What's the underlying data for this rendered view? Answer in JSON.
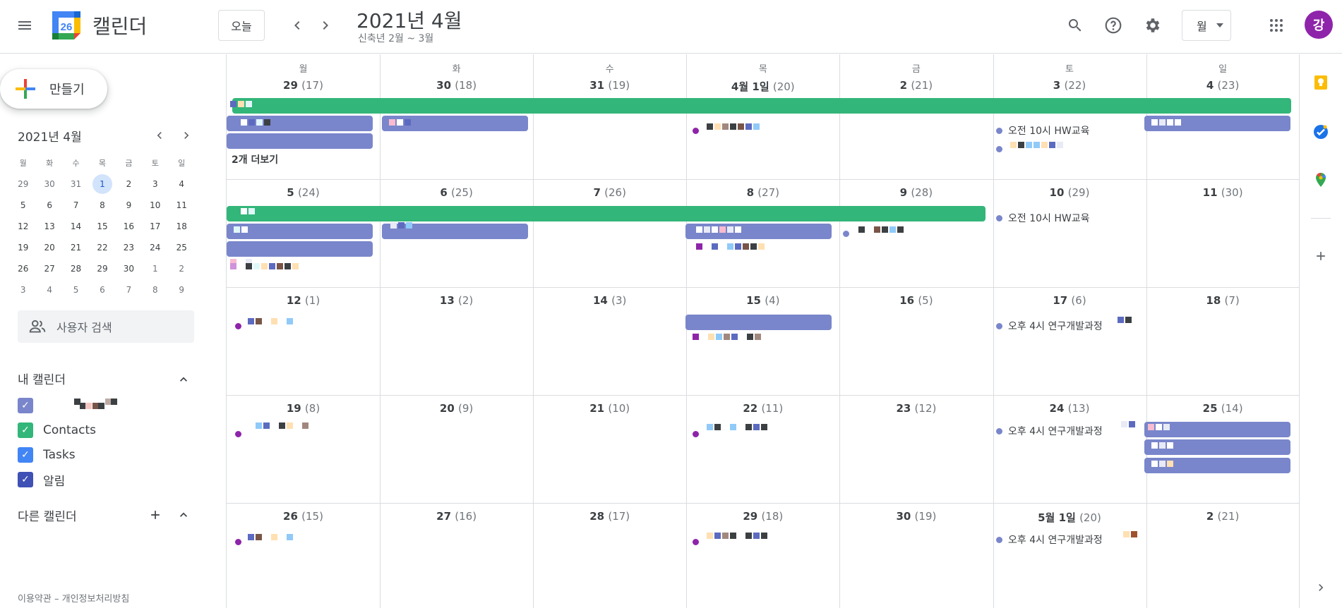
{
  "header": {
    "app_title": "캘린더",
    "logo_day": "26",
    "today_label": "오늘",
    "month_title": "2021년 4월",
    "lunar_subtitle": "신축년 2월 ~ 3월",
    "view_label": "월",
    "avatar_letter": "강"
  },
  "sidebar": {
    "create_label": "만들기",
    "mini_title": "2021년 4월",
    "weekdays": [
      "월",
      "화",
      "수",
      "목",
      "금",
      "토",
      "일"
    ],
    "weeks": [
      [
        "29",
        "30",
        "31",
        "1",
        "2",
        "3",
        "4"
      ],
      [
        "5",
        "6",
        "7",
        "8",
        "9",
        "10",
        "11"
      ],
      [
        "12",
        "13",
        "14",
        "15",
        "16",
        "17",
        "18"
      ],
      [
        "19",
        "20",
        "21",
        "22",
        "23",
        "24",
        "25"
      ],
      [
        "26",
        "27",
        "28",
        "29",
        "30",
        "1",
        "2"
      ],
      [
        "3",
        "4",
        "5",
        "6",
        "7",
        "8",
        "9"
      ]
    ],
    "search_people_placeholder": "사용자 검색",
    "my_calendars_title": "내 캘린더",
    "my_calendars": [
      {
        "name": "",
        "color": "#7986cb"
      },
      {
        "name": "Contacts",
        "color": "#33b679"
      },
      {
        "name": "Tasks",
        "color": "#4285f4"
      },
      {
        "name": "알림",
        "color": "#3f51b5"
      }
    ],
    "other_calendars_title": "다른 캘린더",
    "footer": "이용약관 – 개인정보처리방침"
  },
  "grid": {
    "weekday_headers": [
      "월",
      "화",
      "수",
      "목",
      "금",
      "토",
      "일"
    ],
    "weeks": [
      [
        {
          "d": "29",
          "l": "(17)"
        },
        {
          "d": "30",
          "l": "(18)"
        },
        {
          "d": "31",
          "l": "(19)"
        },
        {
          "d": "4월 1일",
          "l": "(20)"
        },
        {
          "d": "2",
          "l": "(21)"
        },
        {
          "d": "3",
          "l": "(22)"
        },
        {
          "d": "4",
          "l": "(23)"
        }
      ],
      [
        {
          "d": "5",
          "l": "(24)"
        },
        {
          "d": "6",
          "l": "(25)"
        },
        {
          "d": "7",
          "l": "(26)"
        },
        {
          "d": "8",
          "l": "(27)"
        },
        {
          "d": "9",
          "l": "(28)"
        },
        {
          "d": "10",
          "l": "(29)"
        },
        {
          "d": "11",
          "l": "(30)"
        }
      ],
      [
        {
          "d": "12",
          "l": "(1)"
        },
        {
          "d": "13",
          "l": "(2)"
        },
        {
          "d": "14",
          "l": "(3)"
        },
        {
          "d": "15",
          "l": "(4)"
        },
        {
          "d": "16",
          "l": "(5)"
        },
        {
          "d": "17",
          "l": "(6)"
        },
        {
          "d": "18",
          "l": "(7)"
        }
      ],
      [
        {
          "d": "19",
          "l": "(8)"
        },
        {
          "d": "20",
          "l": "(9)"
        },
        {
          "d": "21",
          "l": "(10)"
        },
        {
          "d": "22",
          "l": "(11)"
        },
        {
          "d": "23",
          "l": "(12)"
        },
        {
          "d": "24",
          "l": "(13)"
        },
        {
          "d": "25",
          "l": "(14)"
        }
      ],
      [
        {
          "d": "26",
          "l": "(15)"
        },
        {
          "d": "27",
          "l": "(16)"
        },
        {
          "d": "28",
          "l": "(17)"
        },
        {
          "d": "29",
          "l": "(18)"
        },
        {
          "d": "30",
          "l": "(19)"
        },
        {
          "d": "5월 1일",
          "l": "(20)"
        },
        {
          "d": "2",
          "l": "(21)"
        }
      ]
    ],
    "events": {
      "hw_edu": "오전 10시 HW교육",
      "rnd_course": "오후 4시 연구개발과정",
      "more_label": "2개 더보기"
    },
    "colors": {
      "green": "#33b679",
      "lavender": "#7986cb",
      "grape": "#8e24aa"
    }
  }
}
